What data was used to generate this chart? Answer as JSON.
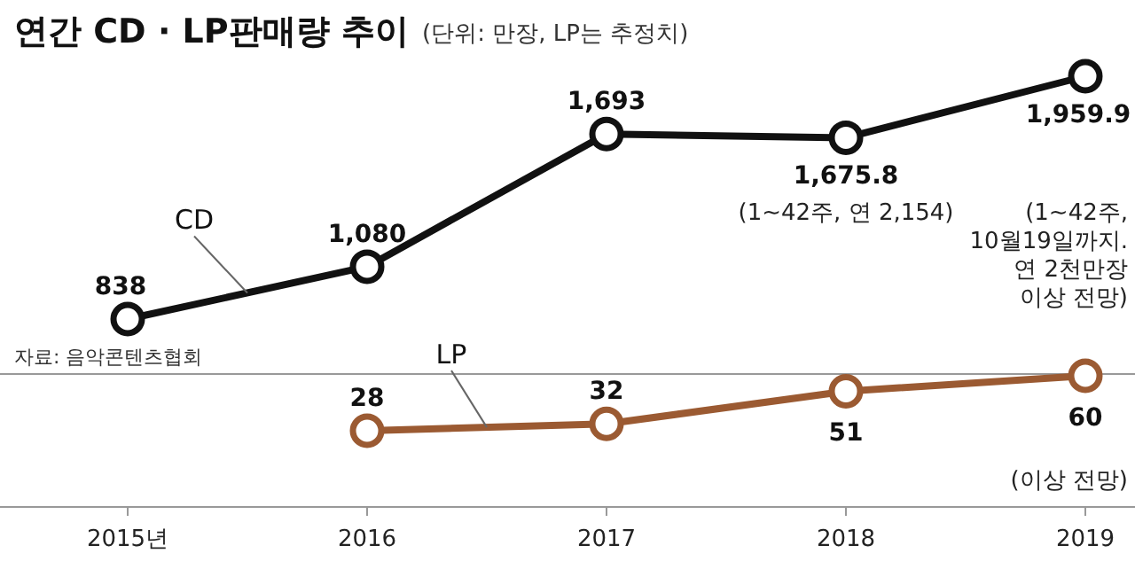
{
  "chart_data": [
    {
      "type": "line",
      "title": "연간 CD · LP판매량 추이",
      "subtitle": "(단위: 만장, LP는 추정치)",
      "categories": [
        null,
        null,
        null,
        null,
        null
      ],
      "marker": "circle",
      "series": [
        {
          "name": "CD",
          "color": "#111111",
          "values": [
            838,
            1080,
            1693,
            1675.8,
            1959.9
          ],
          "value_labels": [
            "838",
            "1,080",
            "1,693",
            "1,675.8",
            "1,959.9"
          ]
        }
      ],
      "annotations": [
        "(1~42주, 연 2,154)",
        "(1~42주,\n10월19일까지.\n연 2천만장\n이상 전망)",
        "자료: 음악콘텐츠협회"
      ]
    },
    {
      "type": "line",
      "categories": [
        "2015년",
        "2016",
        "2017",
        "2018",
        "2019"
      ],
      "marker": "circle",
      "series": [
        {
          "name": "LP",
          "color": "#9b5a32",
          "values": [
            null,
            28,
            32,
            51,
            60
          ],
          "value_labels": [
            null,
            "28",
            "32",
            "51",
            "60"
          ]
        }
      ],
      "annotations": [
        "(이상 전망)"
      ]
    }
  ]
}
